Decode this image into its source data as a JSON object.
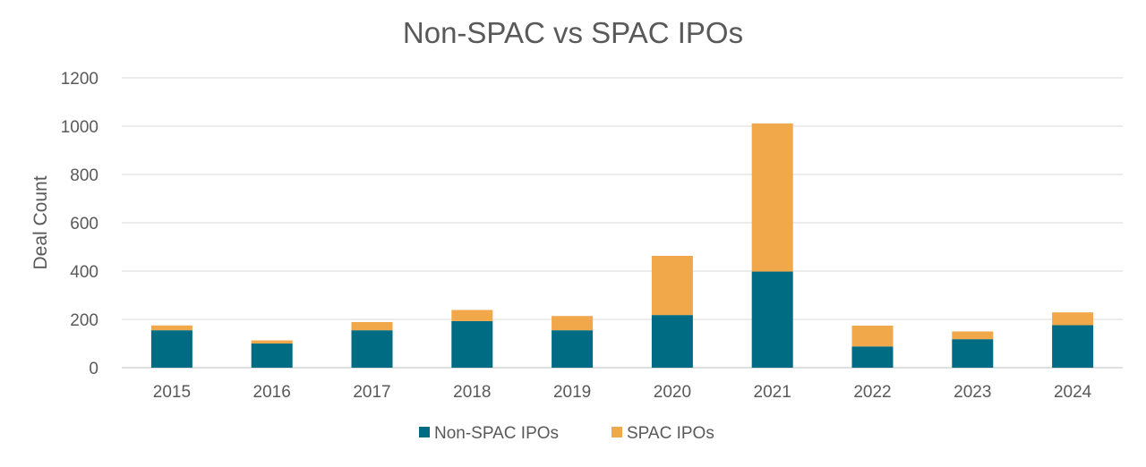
{
  "chart_data": {
    "type": "bar",
    "stacked": true,
    "title": "Non-SPAC vs SPAC IPOs",
    "xlabel": "",
    "ylabel": "Deal Count",
    "ylim": [
      0,
      1200
    ],
    "yticks": [
      0,
      200,
      400,
      600,
      800,
      1000,
      1200
    ],
    "grid": true,
    "legend_position": "bottom",
    "categories": [
      "2015",
      "2016",
      "2017",
      "2018",
      "2019",
      "2020",
      "2021",
      "2022",
      "2023",
      "2024"
    ],
    "series": [
      {
        "name": "Non-SPAC IPOs",
        "color": "#006C84",
        "values": [
          155,
          100,
          155,
          193,
          155,
          218,
          398,
          88,
          118,
          176
        ]
      },
      {
        "name": "SPAC IPOs",
        "color": "#F0A84B",
        "values": [
          20,
          13,
          34,
          46,
          59,
          245,
          613,
          86,
          32,
          53
        ]
      }
    ]
  }
}
